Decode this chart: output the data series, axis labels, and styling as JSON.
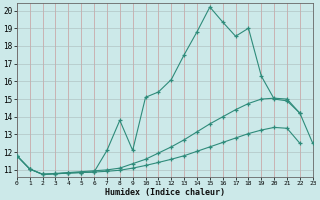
{
  "xlabel": "Humidex (Indice chaleur)",
  "background_color": "#cce9e9",
  "line_color": "#2e8b7a",
  "xlim": [
    0,
    23
  ],
  "ylim": [
    10.6,
    20.4
  ],
  "xticks": [
    0,
    1,
    2,
    3,
    4,
    5,
    6,
    7,
    8,
    9,
    10,
    11,
    12,
    13,
    14,
    15,
    16,
    17,
    18,
    19,
    20,
    21,
    22,
    23
  ],
  "yticks": [
    11,
    12,
    13,
    14,
    15,
    16,
    17,
    18,
    19,
    20
  ],
  "line1_y": [
    11.8,
    11.05,
    10.75,
    10.78,
    10.82,
    10.85,
    10.88,
    12.1,
    13.8,
    12.1,
    15.1,
    15.4,
    16.1,
    17.5,
    18.8,
    20.2,
    19.35,
    18.55,
    19.0,
    16.3,
    15.0,
    14.9,
    14.2,
    null
  ],
  "line2_y": [
    11.8,
    11.05,
    10.75,
    10.8,
    10.85,
    10.9,
    10.95,
    11.0,
    11.1,
    11.35,
    11.6,
    11.95,
    12.3,
    12.7,
    13.15,
    13.6,
    14.0,
    14.4,
    14.75,
    15.0,
    15.05,
    15.0,
    14.2,
    12.5
  ],
  "line3_y": [
    11.8,
    11.05,
    10.75,
    10.78,
    10.82,
    10.85,
    10.88,
    10.92,
    10.98,
    11.1,
    11.25,
    11.42,
    11.6,
    11.8,
    12.05,
    12.3,
    12.55,
    12.8,
    13.05,
    13.25,
    13.4,
    13.35,
    12.5,
    null
  ]
}
